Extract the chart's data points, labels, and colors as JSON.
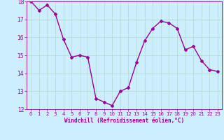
{
  "x": [
    0,
    1,
    2,
    3,
    4,
    5,
    6,
    7,
    8,
    9,
    10,
    11,
    12,
    13,
    14,
    15,
    16,
    17,
    18,
    19,
    20,
    21,
    22,
    23
  ],
  "y": [
    18.0,
    17.5,
    17.8,
    17.3,
    15.9,
    14.9,
    15.0,
    14.9,
    12.6,
    12.4,
    12.2,
    13.0,
    13.2,
    14.6,
    15.8,
    16.5,
    16.9,
    16.8,
    16.5,
    15.3,
    15.5,
    14.7,
    14.2,
    14.1
  ],
  "line_color": "#990099",
  "marker": "D",
  "marker_size": 2,
  "bg_color": "#cceeff",
  "grid_color": "#aaddcc",
  "xlabel": "Windchill (Refroidissement éolien,°C)",
  "xlabel_color": "#990099",
  "tick_color": "#990099",
  "ylim": [
    12,
    18
  ],
  "xlim": [
    -0.5,
    23.5
  ],
  "yticks": [
    12,
    13,
    14,
    15,
    16,
    17,
    18
  ],
  "xticks": [
    0,
    1,
    2,
    3,
    4,
    5,
    6,
    7,
    8,
    9,
    10,
    11,
    12,
    13,
    14,
    15,
    16,
    17,
    18,
    19,
    20,
    21,
    22,
    23
  ],
  "linewidth": 1.0
}
